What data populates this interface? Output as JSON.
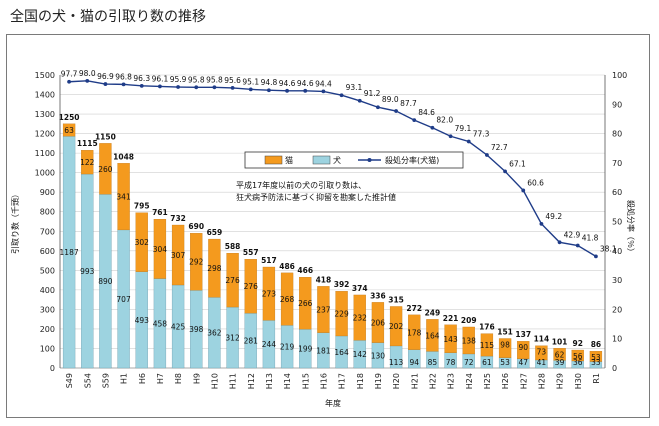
{
  "page": {
    "title": "全国の犬・猫の引取り数の推移"
  },
  "colors": {
    "dog": "#9dd3e0",
    "cat": "#f49a1e",
    "rate_line": "#1f3c88",
    "grid": "#cfcfcf"
  },
  "chart_data": {
    "type": "bar",
    "stacked": true,
    "categories": [
      "S49",
      "S54",
      "S59",
      "H1",
      "H6",
      "H7",
      "H8",
      "H9",
      "H10",
      "H11",
      "H12",
      "H13",
      "H14",
      "H15",
      "H16",
      "H17",
      "H18",
      "H19",
      "H20",
      "H21",
      "H22",
      "H23",
      "H24",
      "H25",
      "H26",
      "H27",
      "H28",
      "H29",
      "H30",
      "R1"
    ],
    "series": [
      {
        "name": "犬",
        "values": [
          1187,
          993,
          890,
          707,
          493,
          458,
          425,
          398,
          362,
          312,
          281,
          244,
          219,
          199,
          181,
          164,
          142,
          130,
          113,
          94,
          85,
          78,
          72,
          61,
          53,
          47,
          41,
          39,
          36,
          33
        ]
      },
      {
        "name": "猫",
        "values": [
          63,
          122,
          260,
          341,
          302,
          304,
          307,
          292,
          298,
          276,
          276,
          273,
          268,
          266,
          237,
          229,
          232,
          206,
          202,
          178,
          164,
          143,
          138,
          115,
          98,
          90,
          73,
          62,
          56,
          53
        ]
      }
    ],
    "totals": [
      1250,
      1115,
      1150,
      1048,
      795,
      761,
      732,
      690,
      659,
      588,
      557,
      517,
      486,
      466,
      418,
      392,
      374,
      336,
      315,
      272,
      249,
      221,
      209,
      176,
      151,
      137,
      114,
      101,
      92,
      86
    ],
    "line_series": {
      "name": "殺処分率(犬猫)",
      "values": [
        97.7,
        98.0,
        96.9,
        96.8,
        96.3,
        96.1,
        95.9,
        95.8,
        95.8,
        95.6,
        95.1,
        94.8,
        94.6,
        94.6,
        94.4,
        93.1,
        91.2,
        89.0,
        87.7,
        84.6,
        82.0,
        79.1,
        77.3,
        72.7,
        67.1,
        60.6,
        49.2,
        42.9,
        41.8,
        38.1
      ],
      "labels": [
        "97.7",
        "98.0",
        "96.9",
        "96.8",
        "96.3",
        "96.1",
        "95.9",
        "95.8",
        "95.8",
        "95.6",
        "95.1",
        "94.8",
        "94.6",
        "94.6",
        "94.4",
        "93.1",
        "91.2",
        "89.0",
        "87.7",
        "84.6",
        "82.0",
        "79.1",
        "77.3",
        "72.7",
        "67.1",
        "60.6",
        "49.2",
        "42.9",
        "41.8",
        "38.1"
      ]
    },
    "title": "全国の犬・猫の引取り数の推移",
    "xlabel": "年度",
    "ylabel": "引取り数（千頭）",
    "y2label": "殺処分率（％）",
    "ylim": [
      0,
      1500
    ],
    "yticks": [
      "0",
      "100",
      "200",
      "300",
      "400",
      "500",
      "600",
      "700",
      "800",
      "900",
      "1000",
      "1100",
      "1200",
      "1300",
      "1400",
      "1500"
    ],
    "y2lim": [
      0,
      100
    ],
    "y2ticks": [
      "0",
      "10",
      "20",
      "30",
      "40",
      "50",
      "60",
      "70",
      "80",
      "90",
      "100"
    ],
    "legend": {
      "position": "top-right",
      "cat": "猫",
      "dog": "犬",
      "rate": "殺処分率(犬猫)"
    },
    "annotation": {
      "line1": "平成17年度以前の犬の引取り数は、",
      "line2": "狂犬病予防法に基づく抑留を勘案した推計値"
    }
  }
}
